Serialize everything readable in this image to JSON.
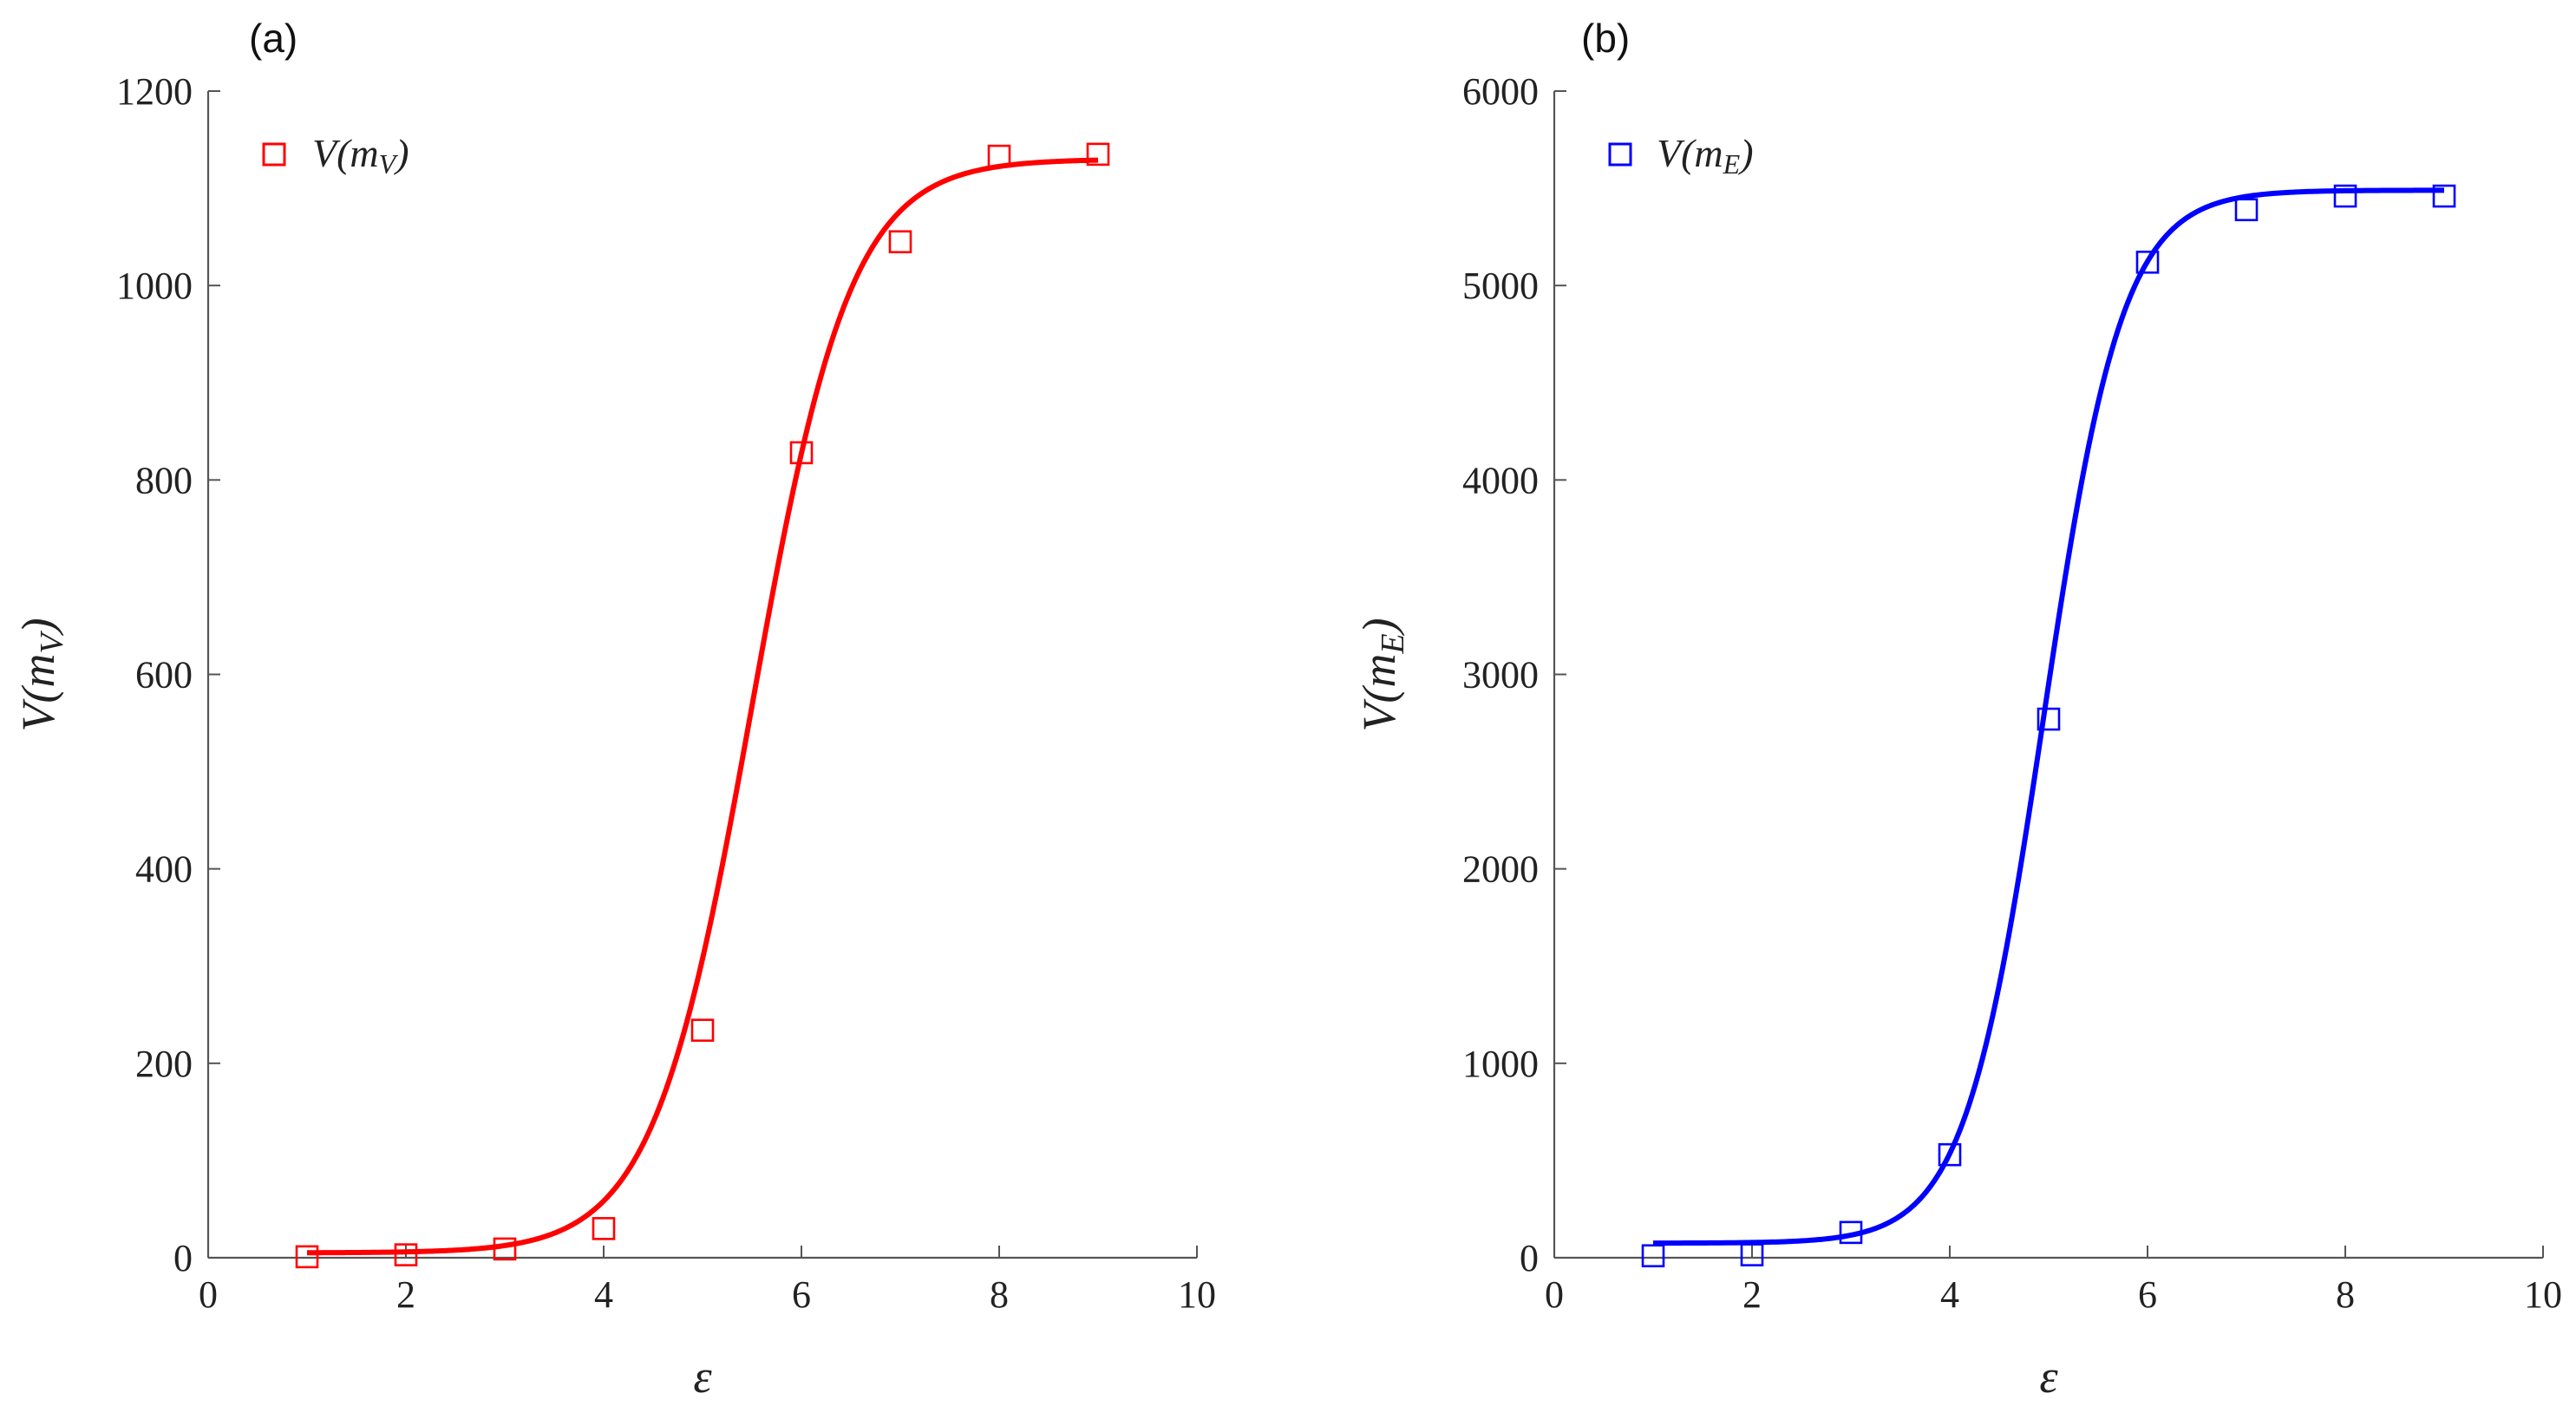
{
  "chart_data": [
    {
      "type": "scatter",
      "panel_label": "(a)",
      "xlabel": "ε",
      "ylabel": {
        "main": "V(m",
        "sub": "V",
        "close": ")"
      },
      "xlim": [
        0,
        10
      ],
      "ylim": [
        0,
        1200
      ],
      "xticks": [
        0,
        2,
        4,
        6,
        8,
        10
      ],
      "yticks": [
        0,
        200,
        400,
        600,
        800,
        1000,
        1200
      ],
      "grid": false,
      "legend_position": "top-left",
      "color": "#ff0000",
      "series": [
        {
          "name": {
            "main": "V(m",
            "sub": "V",
            "close": ")"
          },
          "marker": "open-square",
          "x": [
            1,
            2,
            3,
            4,
            5,
            6,
            7,
            8,
            9
          ],
          "y": [
            1,
            3,
            9,
            30,
            234,
            828,
            1045,
            1133,
            1135
          ]
        }
      ],
      "fit": {
        "type": "sigmoid",
        "base": 5,
        "top": 1130,
        "center": 5.5,
        "scale": 0.5,
        "x_range": [
          1,
          9
        ]
      }
    },
    {
      "type": "scatter",
      "panel_label": "(b)",
      "xlabel": "ε",
      "ylabel": {
        "main": "V(m",
        "sub": "E",
        "close": ")"
      },
      "xlim": [
        0,
        10
      ],
      "ylim": [
        0,
        6000
      ],
      "xticks": [
        0,
        2,
        4,
        6,
        8,
        10
      ],
      "yticks": [
        0,
        1000,
        2000,
        3000,
        4000,
        5000,
        6000
      ],
      "grid": false,
      "legend_position": "top-left",
      "color": "#0000ff",
      "series": [
        {
          "name": {
            "main": "V(m",
            "sub": "E",
            "close": ")"
          },
          "marker": "open-square",
          "x": [
            1,
            2,
            3,
            4,
            5,
            6,
            7,
            8,
            9
          ],
          "y": [
            10,
            15,
            130,
            530,
            2770,
            5120,
            5390,
            5460,
            5460
          ]
        }
      ],
      "fit": {
        "type": "sigmoid",
        "base": 75,
        "top": 5490,
        "center": 4.95,
        "scale": 0.4,
        "x_range": [
          1,
          9
        ]
      }
    }
  ]
}
